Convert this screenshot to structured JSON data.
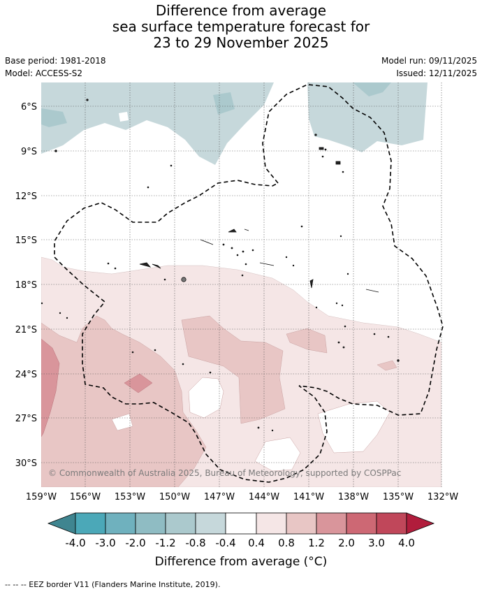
{
  "title": {
    "line1": "Difference from average",
    "line2": "sea surface temperature forecast for",
    "line3": "23 to 29 November 2025"
  },
  "meta": {
    "base_period": "Base period: 1981-2018",
    "model": "Model: ACCESS-S2",
    "model_run": "Model run: 09/11/2025",
    "issued": "Issued: 12/11/2025"
  },
  "map": {
    "lat_labels": [
      "6°S",
      "9°S",
      "12°S",
      "15°S",
      "18°S",
      "21°S",
      "24°S",
      "27°S",
      "30°S"
    ],
    "lon_labels": [
      "159°W",
      "156°W",
      "153°W",
      "150°W",
      "147°W",
      "144°W",
      "141°W",
      "138°W",
      "135°W",
      "132°W"
    ],
    "copyright": "© Commonwealth of Australia 2025, Bureau of Meteorology, supported by COSPPac"
  },
  "colorbar": {
    "tick_labels": [
      "-4.0",
      "-3.0",
      "-2.0",
      "-1.2",
      "-0.8",
      "-0.4",
      "0.4",
      "0.8",
      "1.2",
      "2.0",
      "3.0",
      "4.0"
    ],
    "colors": [
      "#3f8590",
      "#4ba8b8",
      "#6fb1be",
      "#8fbcc3",
      "#abc9cd",
      "#c6d8db",
      "#ffffff",
      "#f5e6e6",
      "#e8c6c5",
      "#d9959b",
      "#cd6874",
      "#c0475a",
      "#b11d3c"
    ],
    "title": "Difference from average (°C)"
  },
  "footnote": "--  --  -- EEZ border V11 (Flanders Marine Institute, 2019)."
}
